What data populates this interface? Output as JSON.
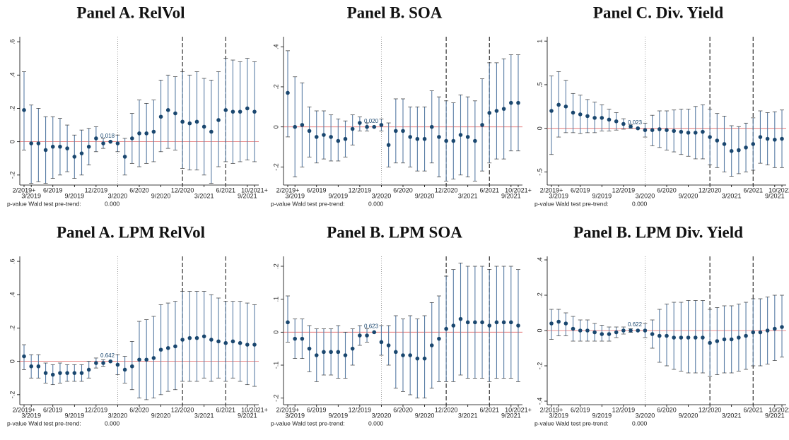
{
  "chart_data": [
    {
      "type": "errorbar",
      "title": "Panel A. RelVol",
      "categories": [
        "2/2019+",
        "3/2019",
        null,
        null,
        "6/2019",
        null,
        null,
        "9/2019",
        null,
        null,
        "12/2019",
        null,
        null,
        "3/2020",
        null,
        null,
        "6/2020",
        null,
        null,
        "9/2020",
        null,
        null,
        "12/2020",
        null,
        null,
        "3/2021",
        null,
        null,
        "6/2021",
        null,
        null,
        "9/2021",
        "10/2021+"
      ],
      "values": [
        0.19,
        -0.01,
        -0.01,
        -0.05,
        -0.03,
        -0.03,
        -0.04,
        -0.09,
        -0.07,
        -0.03,
        0.02,
        -0.01,
        0,
        -0.01,
        -0.09,
        0.02,
        0.05,
        0.05,
        0.06,
        0.15,
        0.19,
        0.17,
        0.12,
        0.11,
        0.12,
        0.09,
        0.06,
        0.13,
        0.19,
        0.18,
        0.18,
        0.2,
        0.18
      ],
      "lower": [
        -0.05,
        -0.25,
        -0.24,
        -0.25,
        -0.22,
        -0.2,
        -0.18,
        -0.22,
        -0.2,
        -0.14,
        -0.06,
        -0.04,
        0,
        -0.06,
        -0.2,
        -0.13,
        -0.15,
        -0.13,
        -0.12,
        -0.06,
        -0.04,
        -0.05,
        -0.16,
        -0.17,
        -0.17,
        -0.2,
        -0.25,
        -0.15,
        -0.12,
        -0.13,
        -0.12,
        -0.11,
        -0.12
      ],
      "upper": [
        0.42,
        0.22,
        0.2,
        0.15,
        0.15,
        0.14,
        0.1,
        0.04,
        0.07,
        0.08,
        0.09,
        0.02,
        0,
        0.04,
        0.02,
        0.17,
        0.25,
        0.23,
        0.25,
        0.37,
        0.4,
        0.39,
        0.42,
        0.4,
        0.42,
        0.38,
        0.37,
        0.42,
        0.5,
        0.49,
        0.48,
        0.5,
        0.48
      ],
      "annotation": "0.018",
      "ylim": [
        -0.26,
        0.63
      ],
      "yticks": [
        {
          "value": -0.2,
          "label": "-.2"
        },
        0,
        {
          "value": 0.2,
          "label": ".2"
        },
        {
          "value": 0.4,
          "label": ".4"
        },
        {
          "value": 0.6,
          "label": ".6"
        }
      ],
      "reference_lines": [
        {
          "x": 13,
          "style": "dotted"
        },
        {
          "x": 22,
          "style": "dashed"
        },
        {
          "x": 28,
          "style": "dashed"
        }
      ],
      "zero_line_color": "#e06666",
      "color": "#1a476f",
      "ci_color": "#5b7fa6",
      "footnote": "p-value Wald test pre-trend:",
      "footnote_value": "0.000"
    },
    {
      "type": "errorbar",
      "title": "Panel B. SOA",
      "categories": [
        "2/2019+",
        "3/2019",
        null,
        null,
        "6/2019",
        null,
        null,
        "9/2019",
        null,
        null,
        "12/2019",
        null,
        null,
        "3/2020",
        null,
        null,
        "6/2020",
        null,
        null,
        "9/2020",
        null,
        null,
        "12/2020",
        null,
        null,
        "3/2021",
        null,
        null,
        "6/2021",
        null,
        null,
        "9/2021",
        "10/2021+"
      ],
      "values": [
        0.17,
        0,
        0.01,
        -0.02,
        -0.05,
        -0.04,
        -0.05,
        -0.07,
        -0.06,
        -0.01,
        0.02,
        0,
        0,
        0.01,
        -0.09,
        -0.02,
        -0.02,
        -0.05,
        -0.06,
        -0.06,
        0,
        -0.05,
        -0.07,
        -0.07,
        -0.04,
        -0.05,
        -0.07,
        0.01,
        0.07,
        0.08,
        0.09,
        0.12,
        0.12
      ],
      "lower": [
        -0.05,
        -0.25,
        -0.2,
        -0.15,
        -0.18,
        -0.16,
        -0.17,
        -0.17,
        -0.15,
        -0.09,
        -0.02,
        -0.02,
        0,
        -0.02,
        -0.2,
        -0.18,
        -0.18,
        -0.2,
        -0.22,
        -0.22,
        -0.18,
        -0.25,
        -0.27,
        -0.26,
        -0.24,
        -0.25,
        -0.27,
        -0.22,
        -0.18,
        -0.16,
        -0.16,
        -0.12,
        -0.12
      ],
      "upper": [
        0.38,
        0.25,
        0.22,
        0.1,
        0.08,
        0.08,
        0.06,
        0.04,
        0.03,
        0.06,
        0.05,
        0.02,
        0,
        0.04,
        0.02,
        0.14,
        0.14,
        0.1,
        0.1,
        0.1,
        0.18,
        0.15,
        0.13,
        0.12,
        0.16,
        0.15,
        0.13,
        0.24,
        0.32,
        0.32,
        0.34,
        0.36,
        0.36
      ],
      "annotation": "0.020",
      "ylim": [
        -0.29,
        0.45
      ],
      "yticks": [
        {
          "value": -0.2,
          "label": "-.2"
        },
        0,
        {
          "value": 0.2,
          "label": ".2"
        },
        {
          "value": 0.4,
          "label": ".4"
        }
      ],
      "reference_lines": [
        {
          "x": 13,
          "style": "dotted"
        },
        {
          "x": 22,
          "style": "dashed"
        },
        {
          "x": 28,
          "style": "dashed"
        }
      ],
      "zero_line_color": "#e06666",
      "color": "#1a476f",
      "ci_color": "#5b7fa6",
      "footnote": "p-value Wald test pre-trend:",
      "footnote_value": "0.000"
    },
    {
      "type": "errorbar",
      "title": "Panel C. Div. Yield",
      "categories": [
        "2/2019+",
        "3/2019",
        null,
        null,
        "6/2019",
        null,
        null,
        "9/2019",
        null,
        null,
        "12/2019",
        null,
        null,
        "3/2020",
        null,
        null,
        "6/2020",
        null,
        null,
        "9/2020",
        null,
        null,
        "12/2020",
        null,
        null,
        "3/2021",
        null,
        null,
        "6/2021",
        null,
        null,
        "9/2021",
        "10/2021+"
      ],
      "values": [
        0.2,
        0.27,
        0.25,
        0.18,
        0.16,
        0.14,
        0.12,
        0.12,
        0.1,
        0.08,
        0.05,
        0.02,
        0,
        -0.02,
        -0.02,
        -0.01,
        -0.02,
        -0.03,
        -0.04,
        -0.05,
        -0.05,
        -0.04,
        -0.1,
        -0.14,
        -0.18,
        -0.26,
        -0.25,
        -0.22,
        -0.18,
        -0.1,
        -0.12,
        -0.13,
        -0.12
      ],
      "lower": [
        -0.3,
        -0.1,
        -0.05,
        -0.05,
        -0.06,
        -0.05,
        -0.05,
        -0.03,
        -0.03,
        -0.02,
        -0.01,
        0,
        0,
        -0.1,
        -0.2,
        -0.22,
        -0.25,
        -0.27,
        -0.3,
        -0.32,
        -0.35,
        -0.35,
        -0.42,
        -0.45,
        -0.5,
        -0.55,
        -0.52,
        -0.5,
        -0.48,
        -0.4,
        -0.42,
        -0.45,
        -0.45
      ],
      "upper": [
        0.6,
        0.65,
        0.55,
        0.4,
        0.38,
        0.33,
        0.3,
        0.27,
        0.22,
        0.18,
        0.11,
        0.04,
        0,
        0.06,
        0.15,
        0.2,
        0.2,
        0.21,
        0.22,
        0.22,
        0.25,
        0.27,
        0.22,
        0.17,
        0.14,
        0.03,
        0.02,
        0.06,
        0.12,
        0.2,
        0.18,
        0.19,
        0.21
      ],
      "annotation": "0.023",
      "ylim": [
        -0.65,
        1.05
      ],
      "yticks": [
        {
          "value": -0.5,
          "label": "-.5"
        },
        0,
        {
          "value": 0.5,
          "label": ".5"
        },
        1
      ],
      "reference_lines": [
        {
          "x": 13,
          "style": "dotted"
        },
        {
          "x": 22,
          "style": "dashed"
        },
        {
          "x": 28,
          "style": "dashed"
        }
      ],
      "zero_line_color": "#e06666",
      "color": "#1a476f",
      "ci_color": "#5b7fa6",
      "footnote": "p-value Wald test pre-trend:",
      "footnote_value": "0.000"
    },
    {
      "type": "errorbar",
      "title": "Panel A. LPM RelVol",
      "categories": [
        "2/2019+",
        "3/2019",
        null,
        null,
        "6/2019",
        null,
        null,
        "9/2019",
        null,
        null,
        "12/2019",
        null,
        null,
        "3/2020",
        null,
        null,
        "6/2020",
        null,
        null,
        "9/2020",
        null,
        null,
        "12/2020",
        null,
        null,
        "3/2021",
        null,
        null,
        "6/2021",
        null,
        null,
        "9/2021",
        "10/2021+"
      ],
      "values": [
        0.03,
        -0.03,
        -0.03,
        -0.07,
        -0.08,
        -0.07,
        -0.07,
        -0.07,
        -0.07,
        -0.05,
        -0.01,
        -0.01,
        0,
        -0.02,
        -0.05,
        -0.03,
        0.01,
        0.01,
        0.02,
        0.07,
        0.08,
        0.09,
        0.13,
        0.14,
        0.14,
        0.15,
        0.13,
        0.12,
        0.11,
        0.12,
        0.11,
        0.1,
        0.1
      ],
      "lower": [
        -0.05,
        -0.1,
        -0.1,
        -0.13,
        -0.14,
        -0.13,
        -0.12,
        -0.12,
        -0.12,
        -0.1,
        -0.04,
        -0.03,
        0,
        -0.08,
        -0.13,
        -0.17,
        -0.22,
        -0.23,
        -0.22,
        -0.2,
        -0.18,
        -0.17,
        -0.12,
        -0.12,
        -0.12,
        -0.1,
        -0.12,
        -0.1,
        -0.12,
        -0.1,
        -0.12,
        -0.14,
        -0.15
      ],
      "upper": [
        0.1,
        0.04,
        0.04,
        -0.01,
        -0.02,
        -0.01,
        -0.02,
        -0.02,
        -0.02,
        0,
        0.02,
        0.01,
        0,
        0.04,
        0.03,
        0.12,
        0.24,
        0.25,
        0.27,
        0.34,
        0.35,
        0.36,
        0.42,
        0.42,
        0.42,
        0.42,
        0.4,
        0.38,
        0.36,
        0.36,
        0.36,
        0.35,
        0.34
      ],
      "annotation": "0.642",
      "ylim": [
        -0.26,
        0.63
      ],
      "yticks": [
        {
          "value": -0.2,
          "label": "-.2"
        },
        0,
        {
          "value": 0.2,
          "label": ".2"
        },
        {
          "value": 0.4,
          "label": ".4"
        },
        {
          "value": 0.6,
          "label": ".6"
        }
      ],
      "reference_lines": [
        {
          "x": 13,
          "style": "dotted"
        },
        {
          "x": 22,
          "style": "dashed"
        },
        {
          "x": 28,
          "style": "dashed"
        }
      ],
      "zero_line_color": "#e06666",
      "color": "#1a476f",
      "ci_color": "#5b7fa6",
      "footnote": "p-value Wald test pre-trend:",
      "footnote_value": "0.000"
    },
    {
      "type": "errorbar",
      "title": "Panel B. LPM SOA",
      "categories": [
        "2/2019+",
        "3/2019",
        null,
        null,
        "6/2019",
        null,
        null,
        "9/2019",
        null,
        null,
        "12/2019",
        null,
        null,
        "3/2020",
        null,
        null,
        "6/2020",
        null,
        null,
        "9/2020",
        null,
        null,
        "12/2020",
        null,
        null,
        "3/2021",
        null,
        null,
        "6/2021",
        null,
        null,
        "9/2021",
        "10/2021+"
      ],
      "values": [
        0.03,
        -0.02,
        -0.02,
        -0.05,
        -0.07,
        -0.06,
        -0.06,
        -0.06,
        -0.07,
        -0.05,
        -0.01,
        -0.01,
        0,
        -0.03,
        -0.04,
        -0.06,
        -0.07,
        -0.07,
        -0.08,
        -0.08,
        -0.04,
        -0.02,
        0.01,
        0.02,
        0.04,
        0.03,
        0.03,
        0.03,
        0.02,
        0.03,
        0.03,
        0.03,
        0.02
      ],
      "lower": [
        -0.03,
        -0.08,
        -0.08,
        -0.12,
        -0.15,
        -0.13,
        -0.13,
        -0.14,
        -0.14,
        -0.1,
        -0.04,
        -0.03,
        0,
        -0.07,
        -0.1,
        -0.17,
        -0.18,
        -0.19,
        -0.2,
        -0.2,
        -0.17,
        -0.15,
        -0.15,
        -0.15,
        -0.13,
        -0.14,
        -0.14,
        -0.14,
        -0.15,
        -0.14,
        -0.14,
        -0.14,
        -0.15
      ],
      "upper": [
        0.11,
        0.04,
        0.04,
        0.02,
        0.01,
        0.01,
        0.01,
        0.02,
        0,
        0.01,
        0.02,
        0.01,
        0,
        0.02,
        0.02,
        0.05,
        0.04,
        0.05,
        0.04,
        0.05,
        0.09,
        0.11,
        0.17,
        0.19,
        0.21,
        0.2,
        0.2,
        0.2,
        0.19,
        0.2,
        0.2,
        0.2,
        0.19
      ],
      "annotation": "0.623",
      "ylim": [
        -0.22,
        0.23
      ],
      "yticks": [
        {
          "value": -0.2,
          "label": "-.2"
        },
        {
          "value": -0.1,
          "label": "-.1"
        },
        0,
        {
          "value": 0.1,
          "label": ".1"
        },
        {
          "value": 0.2,
          "label": ".2"
        }
      ],
      "reference_lines": [
        {
          "x": 13,
          "style": "dotted"
        },
        {
          "x": 22,
          "style": "dashed"
        },
        {
          "x": 28,
          "style": "dashed"
        }
      ],
      "zero_line_color": "#e06666",
      "color": "#1a476f",
      "ci_color": "#5b7fa6",
      "footnote": "p-value Wald test pre-trend:",
      "footnote_value": "0.000"
    },
    {
      "type": "errorbar",
      "title": "Panel B. LPM Div. Yield",
      "categories": [
        "2/2019+",
        "3/2019",
        null,
        null,
        "6/2019",
        null,
        null,
        "9/2019",
        null,
        null,
        "12/2019",
        null,
        null,
        "3/2020",
        null,
        null,
        "6/2020",
        null,
        null,
        "9/2020",
        null,
        null,
        "12/2020",
        null,
        null,
        "3/2021",
        null,
        null,
        "6/2021",
        null,
        null,
        "9/2021",
        "10/2021+"
      ],
      "values": [
        0.04,
        0.05,
        0.04,
        0.01,
        0,
        0,
        -0.01,
        -0.02,
        -0.02,
        -0.01,
        0,
        0,
        0,
        0,
        -0.02,
        -0.03,
        -0.03,
        -0.04,
        -0.04,
        -0.04,
        -0.04,
        -0.04,
        -0.07,
        -0.06,
        -0.05,
        -0.05,
        -0.04,
        -0.03,
        -0.01,
        -0.01,
        0,
        0.01,
        0.02
      ],
      "lower": [
        -0.05,
        -0.03,
        -0.03,
        -0.06,
        -0.06,
        -0.06,
        -0.06,
        -0.06,
        -0.06,
        -0.04,
        -0.02,
        -0.01,
        0,
        -0.04,
        -0.1,
        -0.18,
        -0.2,
        -0.22,
        -0.23,
        -0.24,
        -0.24,
        -0.24,
        -0.26,
        -0.25,
        -0.24,
        -0.24,
        -0.23,
        -0.22,
        -0.2,
        -0.2,
        -0.19,
        -0.17,
        -0.15
      ],
      "upper": [
        0.12,
        0.12,
        0.1,
        0.08,
        0.06,
        0.06,
        0.04,
        0.03,
        0.02,
        0.02,
        0.02,
        0.01,
        0,
        0.04,
        0.06,
        0.12,
        0.15,
        0.16,
        0.16,
        0.17,
        0.17,
        0.17,
        0.12,
        0.13,
        0.14,
        0.14,
        0.15,
        0.16,
        0.18,
        0.18,
        0.19,
        0.2,
        0.2
      ],
      "annotation": "0.622",
      "ylim": [
        -0.42,
        0.42
      ],
      "yticks": [
        {
          "value": -0.4,
          "label": "-.4"
        },
        {
          "value": -0.2,
          "label": "-.2"
        },
        0,
        {
          "value": 0.2,
          "label": ".2"
        },
        {
          "value": 0.4,
          "label": ".4"
        }
      ],
      "reference_lines": [
        {
          "x": 13,
          "style": "dotted"
        },
        {
          "x": 22,
          "style": "dashed"
        },
        {
          "x": 28,
          "style": "dashed"
        }
      ],
      "zero_line_color": "#e06666",
      "color": "#1a476f",
      "ci_color": "#5b7fa6",
      "footnote": "p-value Wald test pre-trend:",
      "footnote_value": "0.000"
    }
  ]
}
